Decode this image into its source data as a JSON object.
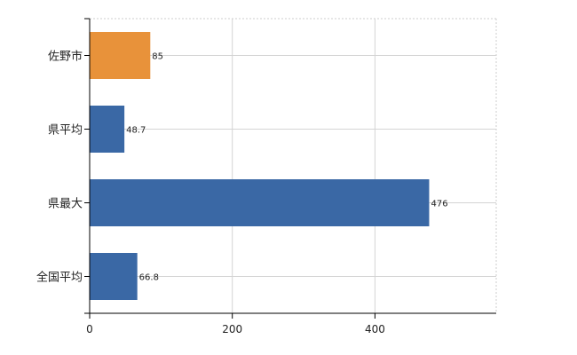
{
  "chart_data": {
    "type": "bar",
    "orientation": "horizontal",
    "categories": [
      "佐野市",
      "県平均",
      "県最大",
      "全国平均"
    ],
    "values": [
      85,
      48.7,
      476,
      66.8
    ],
    "value_labels": [
      "85",
      "48.7",
      "476",
      "66.8"
    ],
    "bar_colors": [
      "#e8923a",
      "#3a68a5",
      "#3a68a5",
      "#3a68a5"
    ],
    "title": "",
    "xlabel": "",
    "ylabel": "",
    "xlim": [
      0,
      570
    ],
    "xticks": [
      0,
      200,
      400
    ],
    "xtick_labels": [
      "0",
      "200",
      "400"
    ],
    "grid": true,
    "legend": "none"
  }
}
